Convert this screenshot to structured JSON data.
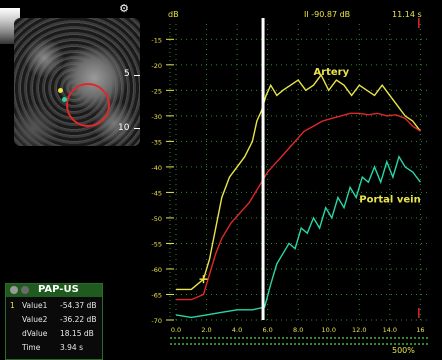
{
  "ultrasound": {
    "depth_labels": [
      "5",
      "10"
    ],
    "logo": "⚙"
  },
  "header": {
    "db_unit": "dB",
    "readout_db": "II -90.87 dB",
    "readout_time": "11.14 s"
  },
  "pap_us": {
    "title": "PAP-US",
    "rows": [
      {
        "index": "1",
        "label": "Value1",
        "value": "-54.37 dB"
      },
      {
        "index": "",
        "label": "Value2",
        "value": "-36.22 dB"
      },
      {
        "index": "",
        "label": "dValue",
        "value": "18.15 dB"
      },
      {
        "index": "",
        "label": "Time",
        "value": "3.94 s"
      }
    ]
  },
  "footer": {
    "percent": "500%"
  },
  "colors": {
    "artery": "#e8e44a",
    "roi": "#e02828",
    "portal_vein": "#29d6a8",
    "cursor": "#ffffff",
    "grid": "#2f8a2f"
  },
  "chart_data": {
    "type": "line",
    "title": "",
    "xlabel": "",
    "ylabel": "dB",
    "y_ticks": [
      "-15",
      "-20",
      "-25",
      "-30",
      "-35",
      "-40",
      "-45",
      "-50",
      "-55",
      "-60",
      "-65",
      "-70"
    ],
    "x_ticks": [
      "0.0",
      "2.0",
      "4.0",
      "6.0",
      "8.0",
      "10.0",
      "12.0",
      "14.0",
      "16"
    ],
    "xlim": [
      0,
      16.5
    ],
    "ylim": [
      -70,
      -12
    ],
    "cursor_x": 5.7,
    "series": [
      {
        "name": "Artery",
        "color": "#e8e44a",
        "x": [
          0,
          1.0,
          1.8,
          2.2,
          2.6,
          3.0,
          3.5,
          4.0,
          4.5,
          5.0,
          5.3,
          5.6,
          5.9,
          6.2,
          6.6,
          7.0,
          7.5,
          8.0,
          8.5,
          9.0,
          9.5,
          10.0,
          10.5,
          11.0,
          11.5,
          12.0,
          12.5,
          13.0,
          13.5,
          14.0,
          14.5,
          15.0,
          15.5,
          16.0
        ],
        "y": [
          -64,
          -64,
          -62,
          -58,
          -52,
          -46,
          -42,
          -40,
          -38,
          -35,
          -31,
          -29,
          -26,
          -24,
          -26,
          -25,
          -24,
          -23,
          -25,
          -24,
          -22,
          -25,
          -23,
          -24,
          -26,
          -24,
          -25,
          -26,
          -24,
          -26,
          -28,
          -30,
          -31,
          -33
        ]
      },
      {
        "name": "",
        "color": "#e02828",
        "x": [
          0,
          1.0,
          1.8,
          2.2,
          2.6,
          3.0,
          3.6,
          4.2,
          4.8,
          5.4,
          6.0,
          6.6,
          7.2,
          7.8,
          8.4,
          9.0,
          9.6,
          10.2,
          10.8,
          11.4,
          12.0,
          12.6,
          13.2,
          13.8,
          14.4,
          15.0,
          15.5,
          16.0
        ],
        "y": [
          -66,
          -66,
          -65,
          -61,
          -57,
          -54,
          -51,
          -49,
          -47,
          -44,
          -41,
          -39,
          -37,
          -35,
          -33,
          -32,
          -31,
          -30.5,
          -30,
          -29.5,
          -29.5,
          -29.8,
          -29.5,
          -30,
          -29.8,
          -30.5,
          -32,
          -33
        ]
      },
      {
        "name": "Portal vein",
        "color": "#29d6a8",
        "x": [
          0,
          1.0,
          2.0,
          3.0,
          4.0,
          5.0,
          5.8,
          6.2,
          6.6,
          7.0,
          7.4,
          7.8,
          8.2,
          8.6,
          9.0,
          9.4,
          9.8,
          10.2,
          10.6,
          11.0,
          11.4,
          11.8,
          12.2,
          12.6,
          13.0,
          13.4,
          13.8,
          14.2,
          14.6,
          15.0,
          15.5,
          16.0
        ],
        "y": [
          -69,
          -69.5,
          -69,
          -68.5,
          -68,
          -68,
          -67.5,
          -63,
          -59,
          -57,
          -55,
          -56,
          -52,
          -53,
          -50,
          -52,
          -48,
          -50,
          -46,
          -48,
          -44,
          -46,
          -42,
          -43,
          -40,
          -43,
          -39,
          -42,
          -38,
          -40,
          -41,
          -43
        ]
      }
    ],
    "annotations": [
      {
        "text": "Artery",
        "x": 9.0,
        "y": -22,
        "color": "#e8e44a"
      },
      {
        "text": "Portal vein",
        "x": 12.0,
        "y": -47,
        "color": "#e8e44a"
      }
    ]
  }
}
